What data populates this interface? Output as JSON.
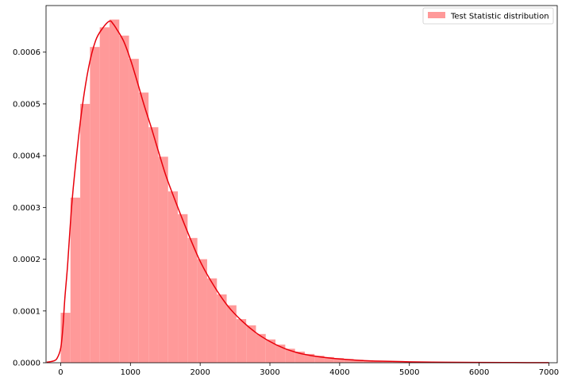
{
  "chart_data": {
    "type": "bar",
    "title": "",
    "xlabel": "",
    "ylabel": "",
    "xlim": [
      -210,
      7120
    ],
    "ylim": [
      0,
      0.00069
    ],
    "x_ticks": [
      0,
      1000,
      2000,
      3000,
      4000,
      5000,
      6000,
      7000
    ],
    "x_tick_labels": [
      "0",
      "1000",
      "2000",
      "3000",
      "4000",
      "5000",
      "6000",
      "7000"
    ],
    "y_ticks": [
      0,
      0.0001,
      0.0002,
      0.0003,
      0.0004,
      0.0005,
      0.0006
    ],
    "y_tick_labels": [
      "0.0000",
      "0.0001",
      "0.0002",
      "0.0003",
      "0.0004",
      "0.0005",
      "0.0006"
    ],
    "grid": false,
    "legend": {
      "position": "top-right",
      "entries": [
        "Test Statistic distribution"
      ]
    },
    "colors": {
      "bars": "#ff9999",
      "kde": "#e8000b",
      "legend_swatch": "#ff9999"
    },
    "series": [
      {
        "name": "Test Statistic distribution",
        "kind": "histogram",
        "bin_width": 140,
        "bin_starts": [
          0,
          140,
          280,
          420,
          560,
          700,
          840,
          980,
          1120,
          1260,
          1400,
          1540,
          1680,
          1820,
          1960,
          2100,
          2240,
          2380,
          2520,
          2660,
          2800,
          2940,
          3080,
          3220,
          3360,
          3500,
          3640,
          3780,
          3920,
          4060,
          4200,
          4340,
          4480,
          4620,
          4760,
          4900,
          5040,
          5180,
          5320,
          5460,
          5600,
          5740,
          5880,
          6020,
          6160,
          6300,
          6440,
          6580,
          6720,
          6860
        ],
        "values": [
          9.65e-05,
          0.000319,
          0.0005,
          0.00061,
          0.000648,
          0.000663,
          0.000632,
          0.000587,
          0.000522,
          0.000455,
          0.000398,
          0.000331,
          0.000287,
          0.000241,
          0.0002,
          0.000163,
          0.000132,
          0.000111,
          8.43e-05,
          7.23e-05,
          5.55e-05,
          4.5e-05,
          3.5e-05,
          2.7e-05,
          2.15e-05,
          1.7e-05,
          1.35e-05,
          1.1e-05,
          9e-06,
          7.2e-06,
          5.8e-06,
          4.7e-06,
          3.8e-06,
          3e-06,
          2.4e-06,
          1.9e-06,
          1.5e-06,
          1.2e-06,
          1e-06,
          8e-07,
          6e-07,
          5e-07,
          4e-07,
          3e-07,
          3e-07,
          2e-07,
          2e-07,
          1e-07,
          1e-07,
          1e-07
        ]
      },
      {
        "name": "",
        "kind": "kde",
        "x": [
          -200,
          -100,
          -50,
          0,
          30,
          60,
          100,
          150,
          200,
          300,
          400,
          500,
          600,
          700,
          750,
          800,
          900,
          1000,
          1100,
          1200,
          1300,
          1400,
          1500,
          1600,
          1800,
          2000,
          2200,
          2400,
          2600,
          2800,
          3000,
          3200,
          3400,
          3600,
          3800,
          4000,
          4300,
          4600,
          5000,
          5500,
          6000,
          6500,
          7000
        ],
        "y": [
          1e-06,
          3.5e-06,
          9e-06,
          2.8e-05,
          6.5e-05,
          0.000125,
          0.00019,
          0.00029,
          0.000365,
          0.000485,
          0.00057,
          0.000622,
          0.000646,
          0.00066,
          0.000655,
          0.000645,
          0.000622,
          0.000586,
          0.000542,
          0.000496,
          0.000454,
          0.000409,
          0.000365,
          0.000328,
          0.000259,
          0.000196,
          0.000148,
          0.000109,
          8.06e-05,
          5.8e-05,
          4.1e-05,
          2.8e-05,
          1.92e-05,
          1.36e-05,
          9.9e-06,
          7.2e-06,
          4.5e-06,
          3e-06,
          1.8e-06,
          1e-06,
          6e-07,
          3e-07,
          2e-07
        ]
      }
    ]
  }
}
